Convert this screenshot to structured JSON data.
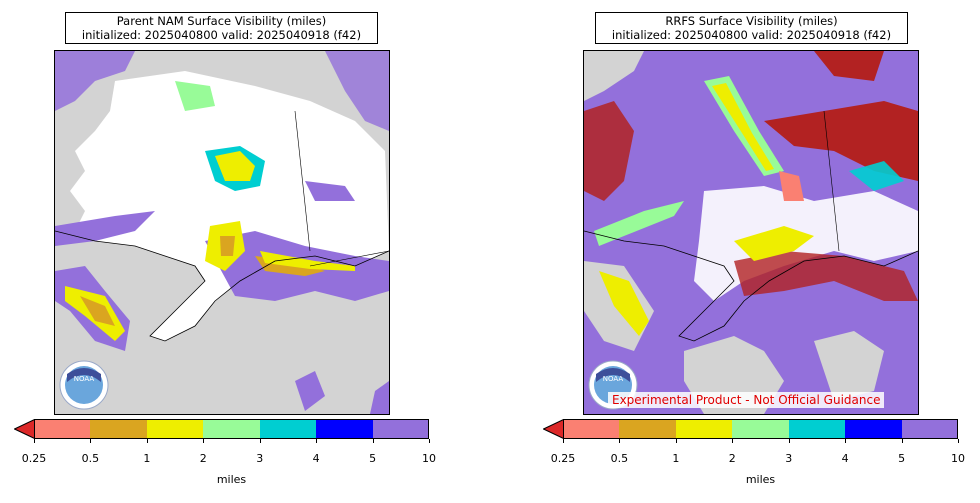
{
  "panels": [
    {
      "title_line1": "Parent NAM Surface Visibility (miles)",
      "title_line2": "initialized: 2025040800 valid: 2025040918 (f42)",
      "logo_text": "NOAA",
      "disclaimer": ""
    },
    {
      "title_line1": "RRFS Surface Visibility (miles)",
      "title_line2": "initialized: 2025040800 valid: 2025040918 (f42)",
      "logo_text": "NOAA",
      "disclaimer": "Experimental Product - Not Official Guidance"
    }
  ],
  "colorbar": {
    "unit": "miles",
    "extend": "min",
    "under_color": "#dc2828",
    "tick_labels": [
      "0.25",
      "0.5",
      "1",
      "2",
      "3",
      "4",
      "5",
      "10"
    ],
    "bins": [
      {
        "from": "0.25",
        "to": "0.5",
        "color": "#fa8072"
      },
      {
        "from": "0.5",
        "to": "1",
        "color": "#daa520"
      },
      {
        "from": "1",
        "to": "2",
        "color": "#eeee00"
      },
      {
        "from": "2",
        "to": "3",
        "color": "#98fb98"
      },
      {
        "from": "3",
        "to": "4",
        "color": "#00ced1"
      },
      {
        "from": "4",
        "to": "5",
        "color": "#0000ff"
      },
      {
        "from": "5",
        "to": "10",
        "color": "#9370db"
      }
    ]
  },
  "map_colors": {
    "ocean": "#d3d3d3",
    "clear": "#ffffff",
    "low_vis": "#b22222"
  }
}
